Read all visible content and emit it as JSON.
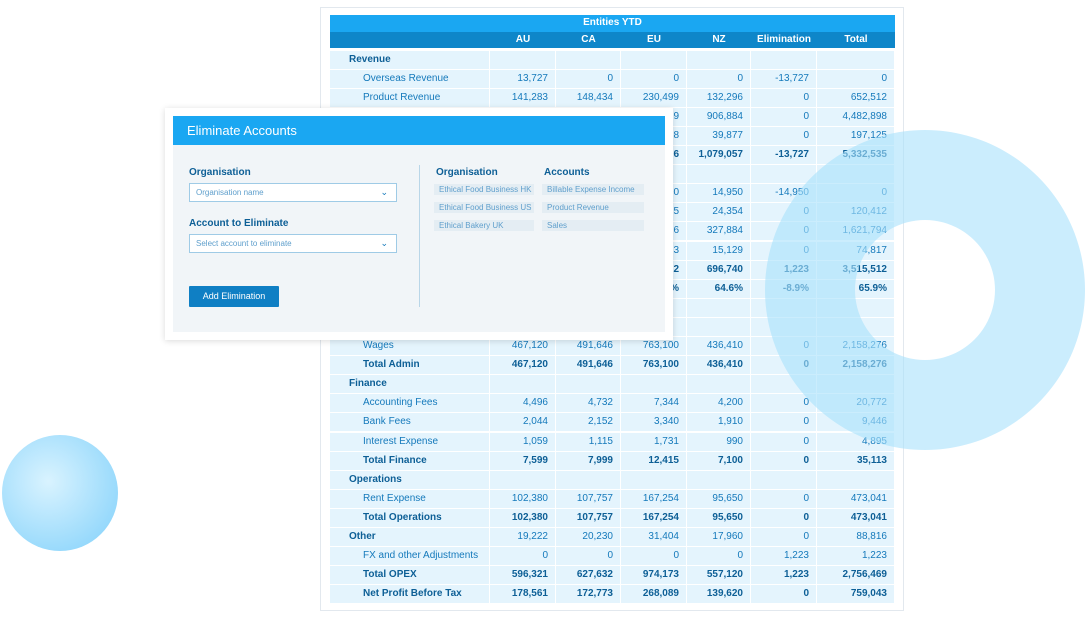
{
  "table": {
    "title": "Entities YTD",
    "columns": [
      "AU",
      "CA",
      "EU",
      "NZ",
      "Elimination",
      "Total"
    ],
    "rows": [
      [
        "Revenue",
        null,
        null,
        null,
        null,
        null,
        null
      ],
      [
        "Overseas Revenue",
        "13,727",
        "0",
        "0",
        "0",
        "-13,727",
        "0"
      ],
      [
        "Product Revenue",
        "141,283",
        "148,434",
        "230,499",
        "132,296",
        "0",
        "652,512"
      ],
      [
        null,
        null,
        null,
        "9",
        "906,884",
        "0",
        "4,482,898"
      ],
      [
        null,
        null,
        null,
        "8",
        "39,877",
        "0",
        "197,125"
      ],
      [
        null,
        null,
        null,
        "6",
        "1,079,057",
        "-13,727",
        "5,332,535"
      ],
      [
        null,
        null,
        null,
        null,
        null,
        null,
        null
      ],
      [
        null,
        null,
        null,
        "0",
        "14,950",
        "-14,950",
        "0"
      ],
      [
        null,
        null,
        null,
        "5",
        "24,354",
        "0",
        "120,412"
      ],
      [
        null,
        null,
        null,
        "6",
        "327,884",
        "0",
        "1,621,794"
      ],
      [
        null,
        null,
        null,
        "3",
        "15,129",
        "0",
        "74,817"
      ],
      [
        null,
        null,
        null,
        "2",
        "696,740",
        "1,223",
        "3,515,512"
      ],
      [
        null,
        null,
        null,
        "%",
        "64.6%",
        "-8.9%",
        "65.9%"
      ],
      [
        null,
        null,
        null,
        null,
        null,
        null,
        null
      ],
      [
        null,
        null,
        null,
        null,
        null,
        null,
        null
      ],
      [
        "Wages",
        "467,120",
        "491,646",
        "763,100",
        "436,410",
        "0",
        "2,158,276"
      ],
      [
        "Total Admin",
        "467,120",
        "491,646",
        "763,100",
        "436,410",
        "0",
        "2,158,276"
      ],
      [
        "Finance",
        null,
        null,
        null,
        null,
        null,
        null
      ],
      [
        "Accounting Fees",
        "4,496",
        "4,732",
        "7,344",
        "4,200",
        "0",
        "20,772"
      ],
      [
        "Bank Fees",
        "2,044",
        "2,152",
        "3,340",
        "1,910",
        "0",
        "9,446"
      ],
      [
        "Interest Expense",
        "1,059",
        "1,115",
        "1,731",
        "990",
        "0",
        "4,895"
      ],
      [
        "Total Finance",
        "7,599",
        "7,999",
        "12,415",
        "7,100",
        "0",
        "35,113"
      ],
      [
        "Operations",
        null,
        null,
        null,
        null,
        null,
        null
      ],
      [
        "Rent Expense",
        "102,380",
        "107,757",
        "167,254",
        "95,650",
        "0",
        "473,041"
      ],
      [
        "Total Operations",
        "102,380",
        "107,757",
        "167,254",
        "95,650",
        "0",
        "473,041"
      ],
      [
        "Other",
        "19,222",
        "20,230",
        "31,404",
        "17,960",
        "0",
        "88,816"
      ],
      [
        "FX and other Adjustments",
        "0",
        "0",
        "0",
        "0",
        "1,223",
        "1,223"
      ],
      [
        "Total OPEX",
        "596,321",
        "627,632",
        "974,173",
        "557,120",
        "1,223",
        "2,756,469"
      ],
      [
        "Net Profit Before Tax",
        "178,561",
        "172,773",
        "268,089",
        "139,620",
        "0",
        "759,043"
      ]
    ]
  },
  "modal": {
    "title": "Eliminate Accounts",
    "organisation_label": "Organisation",
    "organisation_placeholder": "Organisation name",
    "account_label": "Account to Eliminate",
    "account_placeholder": "Select account to eliminate",
    "button": "Add Elimination",
    "list": {
      "headers": [
        "Organisation",
        "Accounts"
      ],
      "rows": [
        [
          "Ethical Food Business HK",
          "Billable Expense Income"
        ],
        [
          "Ethical Food Business US",
          "Product Revenue"
        ],
        [
          "Ethical Bakery UK",
          "Sales"
        ]
      ]
    }
  }
}
